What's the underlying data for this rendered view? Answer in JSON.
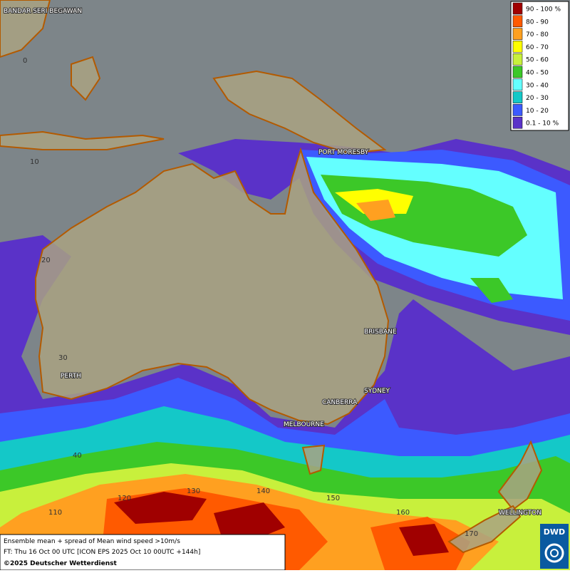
{
  "legend": [
    {
      "label": "90 - 100 %",
      "color": "#a00000"
    },
    {
      "label": "80 - 90",
      "color": "#ff5a00"
    },
    {
      "label": "70 - 80",
      "color": "#ffa020"
    },
    {
      "label": "60 - 70",
      "color": "#ffff00"
    },
    {
      "label": "50 - 60",
      "color": "#c8f03c"
    },
    {
      "label": "40 - 50",
      "color": "#3cc828"
    },
    {
      "label": "30 - 40",
      "color": "#64ffff"
    },
    {
      "label": "20 - 30",
      "color": "#14c8c8"
    },
    {
      "label": "10 - 20",
      "color": "#3c5aff"
    },
    {
      "label": "0.1 - 10 %",
      "color": "#5a32c8"
    }
  ],
  "places": [
    "BANDAR SERI BEGAWAN",
    "PORT MORESBY",
    "BRISBANE",
    "PERTH",
    "SYDNEY",
    "CANBERRA",
    "MELBOURNE",
    "WELLINGTON"
  ],
  "latitudes": [
    0,
    10,
    20,
    30,
    40
  ],
  "longitudes": [
    110,
    120,
    130,
    140,
    150,
    160,
    170
  ],
  "footer": {
    "line1": "Ensemble mean + spread of Mean wind speed >10m/s",
    "line2": "FT: Thu 16 Oct 00 UTC [ICON EPS 2025 Oct 10 00UTC +144h]",
    "line3": "©2025 Deutscher Wetterdienst"
  },
  "logo": "DWD"
}
